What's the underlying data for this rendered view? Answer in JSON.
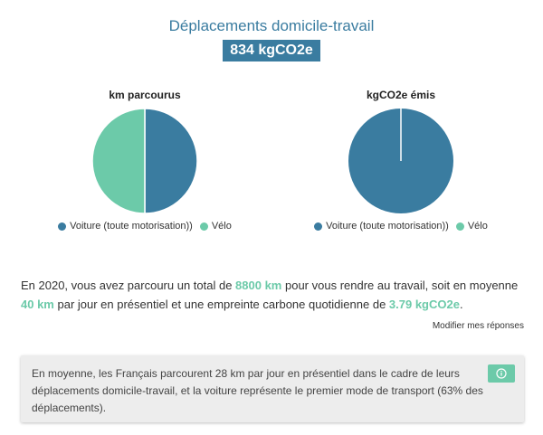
{
  "header": {
    "title": "Déplacements domicile-travail",
    "total": "834 kgCO2e"
  },
  "colors": {
    "primary": "#3a7ca0",
    "accent": "#6ccaa9",
    "info_bg": "#ededed"
  },
  "chart_data": [
    {
      "type": "pie",
      "title": "km parcourus",
      "categories": [
        "Voiture (toute motorisation))",
        "Vélo"
      ],
      "values": [
        50,
        50
      ],
      "colors": [
        "#3a7ca0",
        "#6ccaa9"
      ]
    },
    {
      "type": "pie",
      "title": "kgCO2e émis",
      "categories": [
        "Voiture (toute motorisation))",
        "Vélo"
      ],
      "values": [
        100,
        0
      ],
      "colors": [
        "#3a7ca0",
        "#6ccaa9"
      ]
    }
  ],
  "summary": {
    "part1": "En 2020, vous avez parcouru un total de ",
    "distance": "8800 km",
    "part2": " pour vous rendre au travail, soit en moyenne ",
    "daily": "40 km",
    "part3": " par jour en présentiel et une empreinte carbone quotidienne de ",
    "daily_co2": "3.79 kgCO2e",
    "part4": "."
  },
  "modify_link": "Modifier mes réponses",
  "info": {
    "text": "En moyenne, les Français parcourent 28 km par jour en présentiel dans le cadre de leurs déplacements domicile-travail, et la voiture représente le premier mode de transport (63% des déplacements).",
    "icon": "info-icon"
  }
}
